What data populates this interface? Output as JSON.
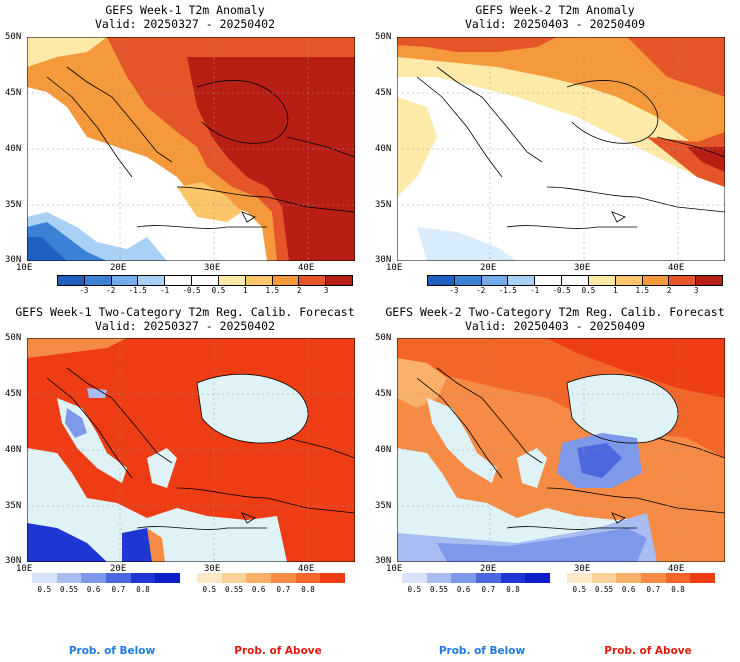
{
  "panels": [
    {
      "title": "GEFS Week-1 T2m Anomaly",
      "valid": "Valid: 20250327 - 20250402"
    },
    {
      "title": "GEFS Week-2 T2m Anomaly",
      "valid": "Valid: 20250403 - 20250409"
    },
    {
      "title": "GEFS Week-1 Two-Category T2m Reg. Calib. Forecast",
      "valid": "Valid: 20250327 - 20250402"
    },
    {
      "title": "GEFS Week-2 Two-Category T2m Reg. Calib. Forecast",
      "valid": "Valid: 20250403 - 20250409"
    }
  ],
  "axes": {
    "lat_labels": [
      "50N",
      "45N",
      "40N",
      "35N",
      "30N"
    ],
    "lon_labels": [
      "10E",
      "20E",
      "30E",
      "40E"
    ]
  },
  "anomaly_colorbar": {
    "ticks": [
      "-3",
      "-2",
      "-1.5",
      "-1",
      "-0.5",
      "0.5",
      "1",
      "1.5",
      "2",
      "3"
    ],
    "colors": [
      "#1f5fbf",
      "#3b82d6",
      "#74acea",
      "#a9d1f5",
      "#ffffff",
      "#ffffff",
      "#fde9a8",
      "#fbc56a",
      "#f59a3c",
      "#e4562a",
      "#b81f14"
    ]
  },
  "prob_colorbar": {
    "below_ticks": [
      "0.5",
      "0.55",
      "0.6",
      "0.7",
      "0.8"
    ],
    "above_ticks": [
      "0.5",
      "0.55",
      "0.6",
      "0.7",
      "0.8"
    ],
    "below_colors": [
      "#d6e3fa",
      "#a9bdf3",
      "#7e98ea",
      "#4b68e0",
      "#1e36d2",
      "#0b1ec8"
    ],
    "above_colors": [
      "#fde9c6",
      "#fcd29a",
      "#f9b068",
      "#f68b45",
      "#f2662a",
      "#ee3d14"
    ],
    "below_label": "Prob. of Below",
    "above_label": "Prob. of Above",
    "below_label_color": "#1f78e0",
    "above_label_color": "#e01c10"
  },
  "map_colors": {
    "sea": "#dff3f7",
    "land_coast": "#000000"
  }
}
